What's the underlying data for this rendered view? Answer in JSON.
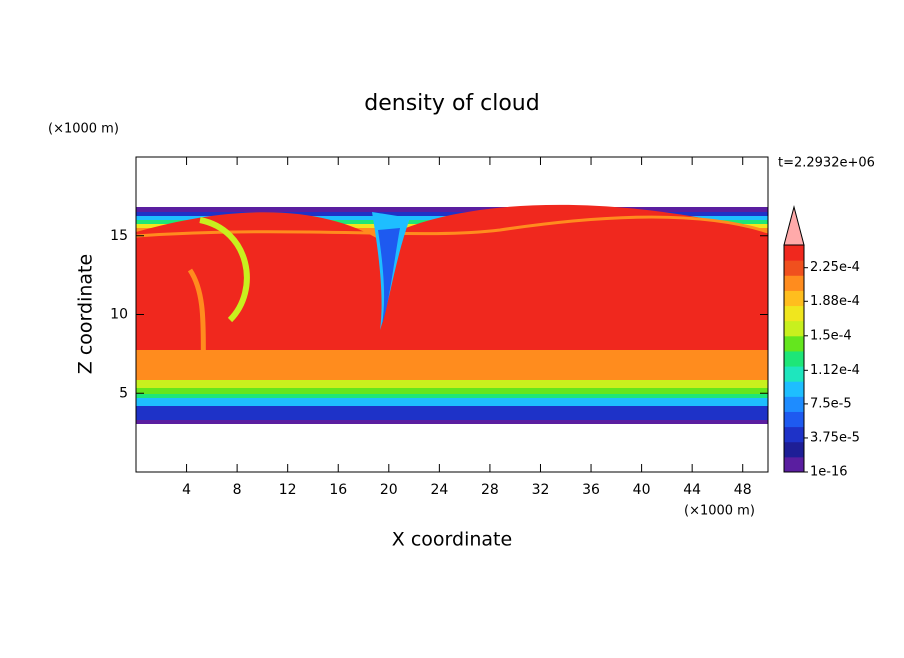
{
  "chart_data": {
    "type": "contour",
    "title": "density of cloud",
    "x_label": "X coordinate",
    "y_label": "Z coordinate",
    "x_unit": "(×1000 m)",
    "y_unit": "(×1000 m)",
    "annotation": "t=2.2932e+06",
    "xlim": [
      0,
      50
    ],
    "xticks": [
      4,
      8,
      12,
      16,
      20,
      24,
      28,
      32,
      36,
      40,
      44,
      48
    ],
    "ylim": [
      0,
      20
    ],
    "yticks": [
      5,
      10,
      15
    ],
    "colorbar": {
      "lim": [
        0,
        0.00025
      ],
      "ticks": [
        {
          "value": 1e-16,
          "label": "1e-16"
        },
        {
          "value": 3.75e-05,
          "label": "3.75e-5"
        },
        {
          "value": 7.5e-05,
          "label": "7.5e-5"
        },
        {
          "value": 0.000112,
          "label": "1.12e-4"
        },
        {
          "value": 0.00015,
          "label": "1.5e-4"
        },
        {
          "value": 0.000188,
          "label": "1.88e-4"
        },
        {
          "value": 0.000225,
          "label": "2.25e-4"
        }
      ],
      "colors": [
        "#5a1ea0",
        "#1e1e96",
        "#1e32c8",
        "#1e5af0",
        "#1e8cff",
        "#1ebeff",
        "#1ee6be",
        "#1ee678",
        "#64e61e",
        "#c8f01e",
        "#f0e61e",
        "#ffbe1e",
        "#ff8c1e",
        "#f0501e",
        "#f0281e"
      ],
      "extend_color": "#ffaaaa"
    }
  }
}
